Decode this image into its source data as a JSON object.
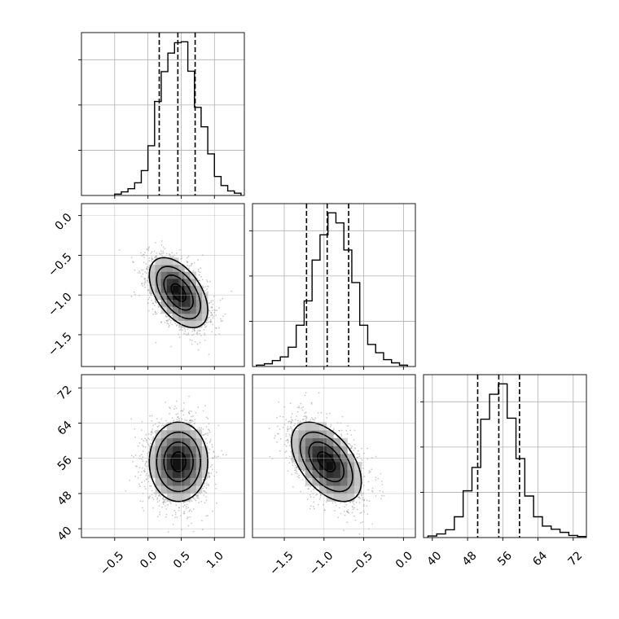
{
  "chart_data": {
    "type": "corner",
    "parameters": [
      {
        "range": [
          -1.0,
          1.45
        ],
        "ticks": [
          -0.5,
          0.0,
          0.5,
          1.0
        ],
        "tick_labels": [
          "−0.5",
          "0.0",
          "0.5",
          "1.0"
        ],
        "quantiles": [
          0.17,
          0.45,
          0.71
        ],
        "hist_bins": [
          -0.5,
          -0.4,
          -0.3,
          -0.2,
          -0.1,
          0.0,
          0.1,
          0.2,
          0.3,
          0.4,
          0.5,
          0.6,
          0.7,
          0.8,
          0.9,
          1.0,
          1.1,
          1.2,
          1.3,
          1.4
        ],
        "hist_values": [
          0.3,
          0.8,
          1.5,
          2.8,
          5.5,
          11.0,
          20.8,
          27.4,
          31.5,
          33.8,
          34.0,
          27.5,
          19.5,
          15.2,
          9.2,
          4.2,
          2.2,
          1.0,
          0.5
        ]
      },
      {
        "range": [
          -1.9,
          0.15
        ],
        "ticks": [
          -1.5,
          -1.0,
          -0.5,
          0.0
        ],
        "tick_labels": [
          "−1.5",
          "−1.0",
          "−0.5",
          "0.0"
        ],
        "quantiles": [
          -1.22,
          -0.96,
          -0.69
        ],
        "hist_bins": [
          -1.85,
          -1.75,
          -1.65,
          -1.55,
          -1.45,
          -1.35,
          -1.25,
          -1.15,
          -1.05,
          -0.95,
          -0.85,
          -0.75,
          -0.65,
          -0.55,
          -0.45,
          -0.35,
          -0.25,
          -0.15,
          -0.05,
          0.05
        ],
        "hist_values": [
          0.3,
          0.6,
          1.3,
          2.1,
          4.2,
          9.0,
          14.3,
          23.2,
          28.7,
          33.5,
          31.3,
          25.4,
          18.3,
          9.0,
          4.8,
          3.0,
          1.5,
          0.8,
          0.3
        ]
      },
      {
        "range": [
          38,
          75
        ],
        "ticks": [
          40,
          48,
          56,
          64,
          72
        ],
        "tick_labels": [
          "40",
          "48",
          "56",
          "64",
          "72"
        ],
        "quantiles": [
          50.3,
          55.1,
          59.8
        ],
        "hist_bins": [
          39,
          41,
          43,
          45,
          47,
          49,
          51,
          53,
          55,
          57,
          59,
          61,
          63,
          65,
          67,
          69,
          71,
          73,
          75
        ],
        "hist_values": [
          0.3,
          0.7,
          1.5,
          4.0,
          9.0,
          13.5,
          22.8,
          27.6,
          29.6,
          23.0,
          15.2,
          8.0,
          4.0,
          2.2,
          1.6,
          1.0,
          0.4,
          0.2
        ]
      }
    ],
    "pairs": [
      {
        "x_param": 0,
        "y_param": 1,
        "center": [
          0.46,
          -0.97
        ],
        "sd": [
          0.22,
          0.22
        ],
        "correlation": -0.5
      },
      {
        "x_param": 0,
        "y_param": 2,
        "center": [
          0.46,
          55.2
        ],
        "sd": [
          0.22,
          4.5
        ],
        "correlation": 0.0
      },
      {
        "x_param": 1,
        "y_param": 2,
        "center": [
          -0.97,
          55.2
        ],
        "sd": [
          0.22,
          4.5
        ],
        "correlation": -0.5
      }
    ],
    "contour_levels_sigma": [
      0.5,
      1.0,
      1.5,
      2.0
    ],
    "grid": true,
    "legend": "none"
  }
}
